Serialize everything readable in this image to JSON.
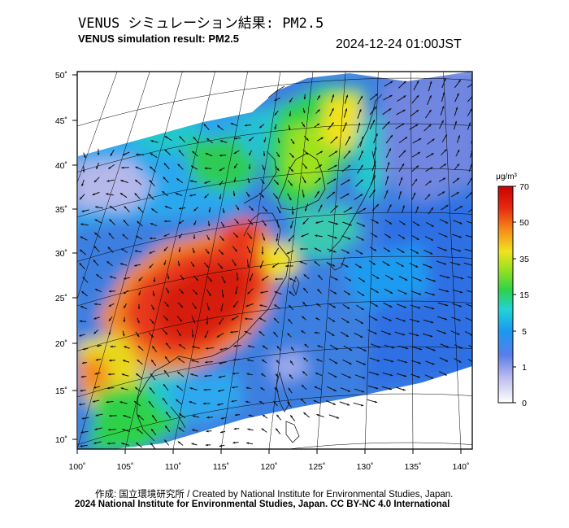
{
  "header": {
    "title_ja": "VENUS シミュレーション結果: PM2.5",
    "title_en": "VENUS simulation result: PM2.5",
    "timestamp": "2024-12-24 01:00JST"
  },
  "map": {
    "lon_labels": [
      "100˚",
      "105˚",
      "110˚",
      "115˚",
      "120˚",
      "125˚",
      "130˚",
      "135˚",
      "140˚"
    ],
    "lat_labels": [
      "50˚",
      "45˚",
      "40˚",
      "35˚",
      "30˚",
      "25˚",
      "20˚",
      "15˚",
      "10˚"
    ],
    "field": "PM2.5 concentration with surface wind vectors",
    "region": "East Asia"
  },
  "colorbar": {
    "unit": "μg/m³",
    "ticks": [
      "70",
      "50",
      "35",
      "15",
      "5",
      "1",
      "0"
    ],
    "colors": [
      "#ffffff",
      "#b9b9ee",
      "#5a7ee8",
      "#1a98f0",
      "#22d2d8",
      "#2ed24a",
      "#9ee21e",
      "#f0e21e",
      "#f58a1a",
      "#e62a10",
      "#cc0000"
    ]
  },
  "footer": {
    "credit": "作成: 国立環境研究所 / Created by National Institute for Environmental Studies, Japan.",
    "license": "2024 National Institute for Environmental Studies, Japan. CC BY-NC 4.0 International"
  }
}
